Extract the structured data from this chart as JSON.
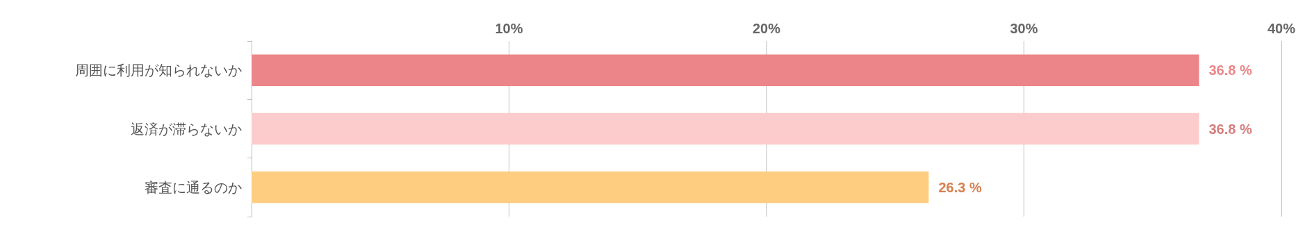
{
  "chart_data": {
    "type": "bar",
    "orientation": "horizontal",
    "categories": [
      "周囲に利用が知られないか",
      "返済が滞らないか",
      "審査に通るのか"
    ],
    "values": [
      36.8,
      36.8,
      26.3
    ],
    "colors": [
      "#ec8589",
      "#fccbcb",
      "#fecd80"
    ],
    "value_labels": [
      "36.8 %",
      "36.8 %",
      "26.3 %"
    ],
    "xlim": [
      0,
      40
    ],
    "xticks": [
      {
        "value": 0,
        "label": null
      },
      {
        "value": 10,
        "label": "10%"
      },
      {
        "value": 20,
        "label": "20%"
      },
      {
        "value": 30,
        "label": "30%"
      },
      {
        "value": 40,
        "label": "40%"
      }
    ],
    "grid": "x"
  }
}
